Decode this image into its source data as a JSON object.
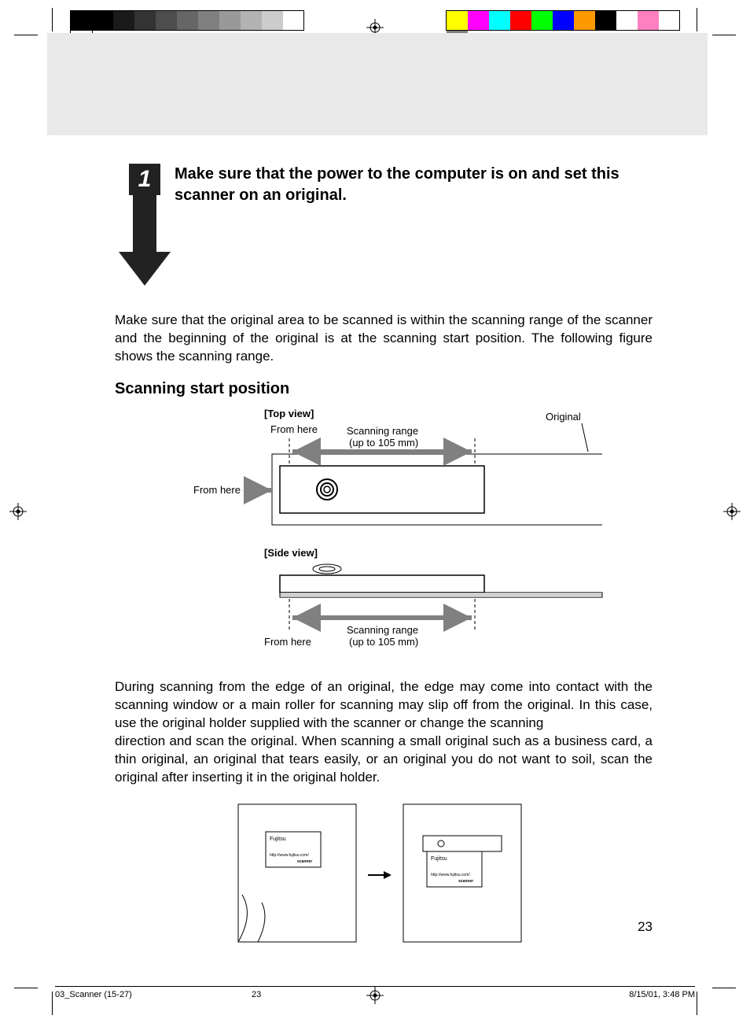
{
  "colorbars": {
    "left_grays": [
      "#000000",
      "#000000",
      "#1a1a1a",
      "#333333",
      "#4d4d4d",
      "#666666",
      "#808080",
      "#999999",
      "#b3b3b3",
      "#cccccc",
      "#ffffff"
    ],
    "right_colors": [
      "#ffff00",
      "#ff00ff",
      "#00ffff",
      "#ff0000",
      "#00ff00",
      "#0000ff",
      "#ff9900",
      "#000000",
      "#ffffff",
      "#ff80c0",
      "#808080"
    ],
    "swatch_width": 27,
    "border": "#000000"
  },
  "step": {
    "number": "1",
    "title": "Make sure that the power to the computer is on and set this scanner on an original.",
    "arrow_color": "#222222"
  },
  "paragraph_intro": "Make sure that the original area to be scanned is within the scanning range of the scanner and the beginning of the original is at the scanning start position. The following figure shows the scanning range.",
  "subheading": "Scanning start position",
  "diagram": {
    "top_view_label": "[Top view]",
    "side_view_label": "[Side view]",
    "from_here": "From here",
    "scanning_range": "Scanning range",
    "range_value": "(up to 105 mm)",
    "original": "Original",
    "stroke": "#000000",
    "arrow_fill": "#808080",
    "dash": "4,3",
    "font_size_label": 13,
    "font_size_bold": 13
  },
  "paragraph_body": "During scanning from the edge of an original, the edge may come into contact with the scanning window or a main roller for scanning may slip off from the original. In this case, use the original holder supplied with the scanner or change the scanning\ndirection and scan the original. When scanning a small original such as a business card, a thin original, an original that tears easily, or an original you do not want to soil, scan the original after inserting it in the original holder.",
  "card_diagram": {
    "brand": "Fujitsu",
    "subtext1": "http://www.fujitsu.com/",
    "subtext2": "scanner",
    "stroke": "#000000"
  },
  "page_number": "23",
  "footer": {
    "file": "03_Scanner (15-27)",
    "page": "23",
    "timestamp": "8/15/01, 3:48 PM"
  }
}
